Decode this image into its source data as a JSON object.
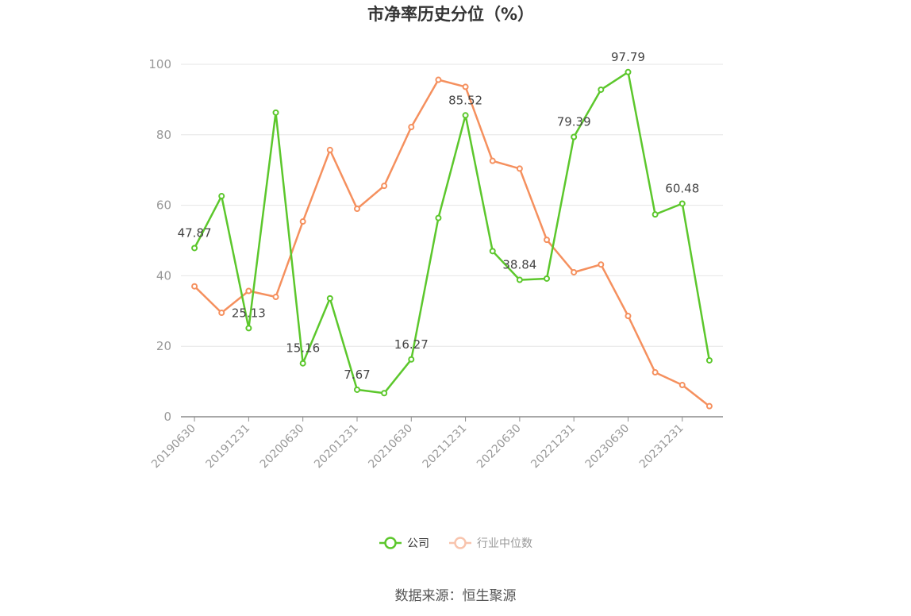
{
  "chart_data": {
    "type": "line",
    "title": "市净率历史分位（%）",
    "x": [
      "20190630",
      "20190930",
      "20191231",
      "20200331",
      "20200630",
      "20200930",
      "20201231",
      "20210331",
      "20210630",
      "20210930",
      "20211231",
      "20220331",
      "20220630",
      "20220930",
      "20221231",
      "20230331",
      "20230630",
      "20230930",
      "20231231",
      "20240331"
    ],
    "x_tick_labels": [
      "20190630",
      "20191231",
      "20200630",
      "20201231",
      "20210630",
      "20211231",
      "20220630",
      "20221231",
      "20230630",
      "20231231"
    ],
    "y_ticks": [
      "0",
      "20",
      "40",
      "60",
      "80",
      "100"
    ],
    "ylim": [
      0,
      100
    ],
    "grid": "horizontal",
    "legend_position": "bottom",
    "series": [
      {
        "name": "公司",
        "color": "#5cc72c",
        "values": [
          47.87,
          62.6,
          25.13,
          86.3,
          15.16,
          33.6,
          7.67,
          6.7,
          16.27,
          56.4,
          85.52,
          47.0,
          38.84,
          39.2,
          79.39,
          92.8,
          97.79,
          57.4,
          60.48,
          16.0
        ],
        "data_labels": [
          "47.87",
          "",
          "25.13",
          "",
          "15.16",
          "",
          "7.67",
          "",
          "16.27",
          "",
          "85.52",
          "",
          "38.84",
          "",
          "79.39",
          "",
          "97.79",
          "",
          "60.48",
          ""
        ]
      },
      {
        "name": "行业中位数",
        "color": "#f5905e",
        "values": [
          37.0,
          29.5,
          35.7,
          34.0,
          55.4,
          75.7,
          59.0,
          65.5,
          82.2,
          95.6,
          93.6,
          72.6,
          70.4,
          50.2,
          41.0,
          43.2,
          28.6,
          12.6,
          9.0,
          3.0
        ]
      }
    ]
  },
  "legend": {
    "items": [
      "公司",
      "行业中位数"
    ]
  },
  "source": "数据来源：恒生聚源"
}
